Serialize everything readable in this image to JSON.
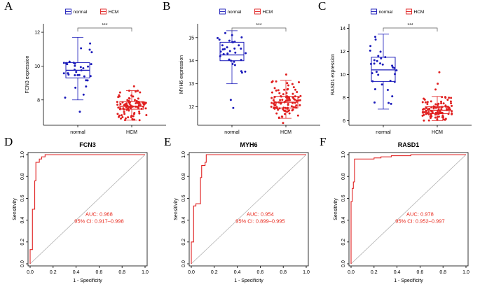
{
  "chart_data": [
    {
      "panel": "A",
      "type": "box",
      "ylabel": "FCN3 expression",
      "categories": [
        "normal",
        "HCM"
      ],
      "colors": [
        "#1c1cba",
        "#e02020"
      ],
      "legend": [
        "normal",
        "HCM"
      ],
      "legend_position": "top",
      "significance": "***",
      "ylim": [
        6.5,
        12.5
      ],
      "yticks": [
        8,
        10,
        12
      ],
      "boxes": [
        {
          "q1": 9.3,
          "median": 9.75,
          "q3": 10.2,
          "whisker_low": 8.0,
          "whisker_high": 11.7,
          "n": 32,
          "outliers": [
            7.3
          ]
        },
        {
          "q1": 7.45,
          "median": 7.62,
          "q3": 7.9,
          "whisker_low": 6.8,
          "whisker_high": 8.55,
          "n": 100,
          "outliers": [
            8.8
          ]
        }
      ]
    },
    {
      "panel": "B",
      "type": "box",
      "ylabel": "MYH6 expression",
      "categories": [
        "normal",
        "HCM"
      ],
      "colors": [
        "#1c1cba",
        "#e02020"
      ],
      "legend": [
        "normal",
        "HCM"
      ],
      "legend_position": "top",
      "significance": "***",
      "ylim": [
        11.2,
        15.6
      ],
      "yticks": [
        12,
        13,
        14,
        15
      ],
      "boxes": [
        {
          "q1": 14.0,
          "median": 14.25,
          "q3": 14.8,
          "whisker_low": 13.0,
          "whisker_high": 15.3,
          "n": 32,
          "outliers": [
            12.3,
            11.95
          ]
        },
        {
          "q1": 11.95,
          "median": 12.2,
          "q3": 12.45,
          "whisker_low": 11.5,
          "whisker_high": 13.15,
          "n": 100,
          "outliers": [
            13.4,
            11.3
          ]
        }
      ]
    },
    {
      "panel": "C",
      "type": "box",
      "ylabel": "RASD1 expression",
      "categories": [
        "normal",
        "HCM"
      ],
      "colors": [
        "#1c1cba",
        "#e02020"
      ],
      "legend": [
        "normal",
        "HCM"
      ],
      "legend_position": "top",
      "significance": "***",
      "ylim": [
        5.6,
        14.4
      ],
      "yticks": [
        6,
        8,
        10,
        12,
        14
      ],
      "boxes": [
        {
          "q1": 9.4,
          "median": 10.4,
          "q3": 11.5,
          "whisker_low": 7.0,
          "whisker_high": 13.5,
          "n": 32,
          "outliers": []
        },
        {
          "q1": 6.6,
          "median": 6.9,
          "q3": 7.2,
          "whisker_low": 6.0,
          "whisker_high": 8.1,
          "n": 100,
          "outliers": [
            8.7,
            9.2,
            10.2
          ]
        }
      ]
    },
    {
      "panel": "D",
      "type": "line",
      "title": "FCN3",
      "xlabel": "1 - Specificity",
      "ylabel": "Sensitivity",
      "xlim": [
        0,
        1
      ],
      "ylim": [
        0,
        1
      ],
      "ticks": [
        0.0,
        0.2,
        0.4,
        0.6,
        0.8,
        1.0
      ],
      "auc_label": "AUC: 0.968",
      "ci_label": "95% CI: 0.917–0.998",
      "roc": [
        [
          0,
          0
        ],
        [
          0,
          0.13
        ],
        [
          0.02,
          0.13
        ],
        [
          0.02,
          0.5
        ],
        [
          0.04,
          0.5
        ],
        [
          0.04,
          0.76
        ],
        [
          0.05,
          0.76
        ],
        [
          0.05,
          0.93
        ],
        [
          0.08,
          0.93
        ],
        [
          0.08,
          0.96
        ],
        [
          0.1,
          0.96
        ],
        [
          0.1,
          0.98
        ],
        [
          0.13,
          0.98
        ],
        [
          0.13,
          1.0
        ],
        [
          1.0,
          1.0
        ]
      ]
    },
    {
      "panel": "E",
      "type": "line",
      "title": "MYH6",
      "xlabel": "1 - Specificity",
      "ylabel": "Sensitivity",
      "xlim": [
        0,
        1
      ],
      "ylim": [
        0,
        1
      ],
      "ticks": [
        0.0,
        0.2,
        0.4,
        0.6,
        0.8,
        1.0
      ],
      "auc_label": "AUC: 0.954",
      "ci_label": "95% CI: 0.899–0.995",
      "roc": [
        [
          0,
          0
        ],
        [
          0,
          0.2
        ],
        [
          0.02,
          0.2
        ],
        [
          0.02,
          0.53
        ],
        [
          0.04,
          0.53
        ],
        [
          0.04,
          0.55
        ],
        [
          0.08,
          0.55
        ],
        [
          0.08,
          0.79
        ],
        [
          0.09,
          0.79
        ],
        [
          0.09,
          0.9
        ],
        [
          0.12,
          0.9
        ],
        [
          0.12,
          0.93
        ],
        [
          0.13,
          0.93
        ],
        [
          0.13,
          1.0
        ],
        [
          1.0,
          1.0
        ]
      ]
    },
    {
      "panel": "F",
      "type": "line",
      "title": "RASD1",
      "xlabel": "1 - Specificity",
      "ylabel": "Sensitivity",
      "xlim": [
        0,
        1
      ],
      "ylim": [
        0,
        1
      ],
      "ticks": [
        0.0,
        0.2,
        0.4,
        0.6,
        0.8,
        1.0
      ],
      "auc_label": "AUC: 0.978",
      "ci_label": "95% CI: 0.952–0.997",
      "roc": [
        [
          0,
          0
        ],
        [
          0,
          0.57
        ],
        [
          0.01,
          0.57
        ],
        [
          0.01,
          0.69
        ],
        [
          0.02,
          0.69
        ],
        [
          0.02,
          0.75
        ],
        [
          0.03,
          0.75
        ],
        [
          0.03,
          0.96
        ],
        [
          0.2,
          0.96
        ],
        [
          0.2,
          0.97
        ],
        [
          0.26,
          0.97
        ],
        [
          0.26,
          0.98
        ],
        [
          0.35,
          0.98
        ],
        [
          0.35,
          0.99
        ],
        [
          0.52,
          0.99
        ],
        [
          0.52,
          1.0
        ],
        [
          1.0,
          1.0
        ]
      ]
    }
  ]
}
